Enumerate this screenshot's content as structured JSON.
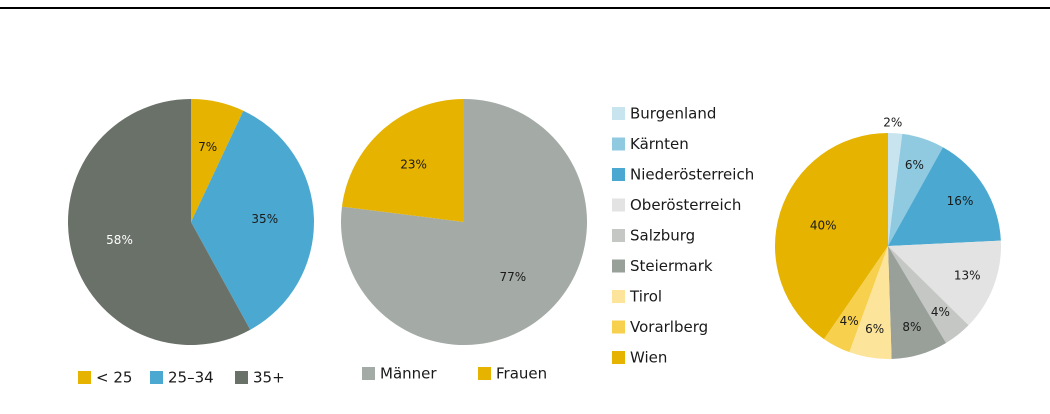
{
  "chart_data": [
    {
      "type": "pie",
      "categories": [
        "< 25",
        "25–34",
        "35+"
      ],
      "values": [
        7,
        35,
        58
      ],
      "value_labels": [
        "7%",
        "35%",
        "58%"
      ],
      "colors": [
        "#e5b300",
        "#4ba9d1",
        "#6a7169"
      ]
    },
    {
      "type": "pie",
      "categories": [
        "Männer",
        "Frauen"
      ],
      "values": [
        77,
        23
      ],
      "value_labels": [
        "77%",
        "23%"
      ],
      "colors": [
        "#a4aaa5",
        "#e5b300"
      ]
    },
    {
      "type": "pie",
      "categories": [
        "Burgenland",
        "Kärnten",
        "Niederösterreich",
        "Oberösterreich",
        "Salzburg",
        "Steiermark",
        "Tirol",
        "Vorarlberg",
        "Wien"
      ],
      "values": [
        2,
        6,
        16,
        13,
        4,
        8,
        6,
        4,
        40
      ],
      "value_labels": [
        "2%",
        "6%",
        "16%",
        "13%",
        "4%",
        "8%",
        "6%",
        "4%",
        "40%"
      ],
      "colors": [
        "#c8e4ef",
        "#8fcae1",
        "#4ba9d1",
        "#e2e3e2",
        "#c4c7c4",
        "#99a09a",
        "#fce49b",
        "#f7d04e",
        "#e5b300"
      ]
    }
  ]
}
